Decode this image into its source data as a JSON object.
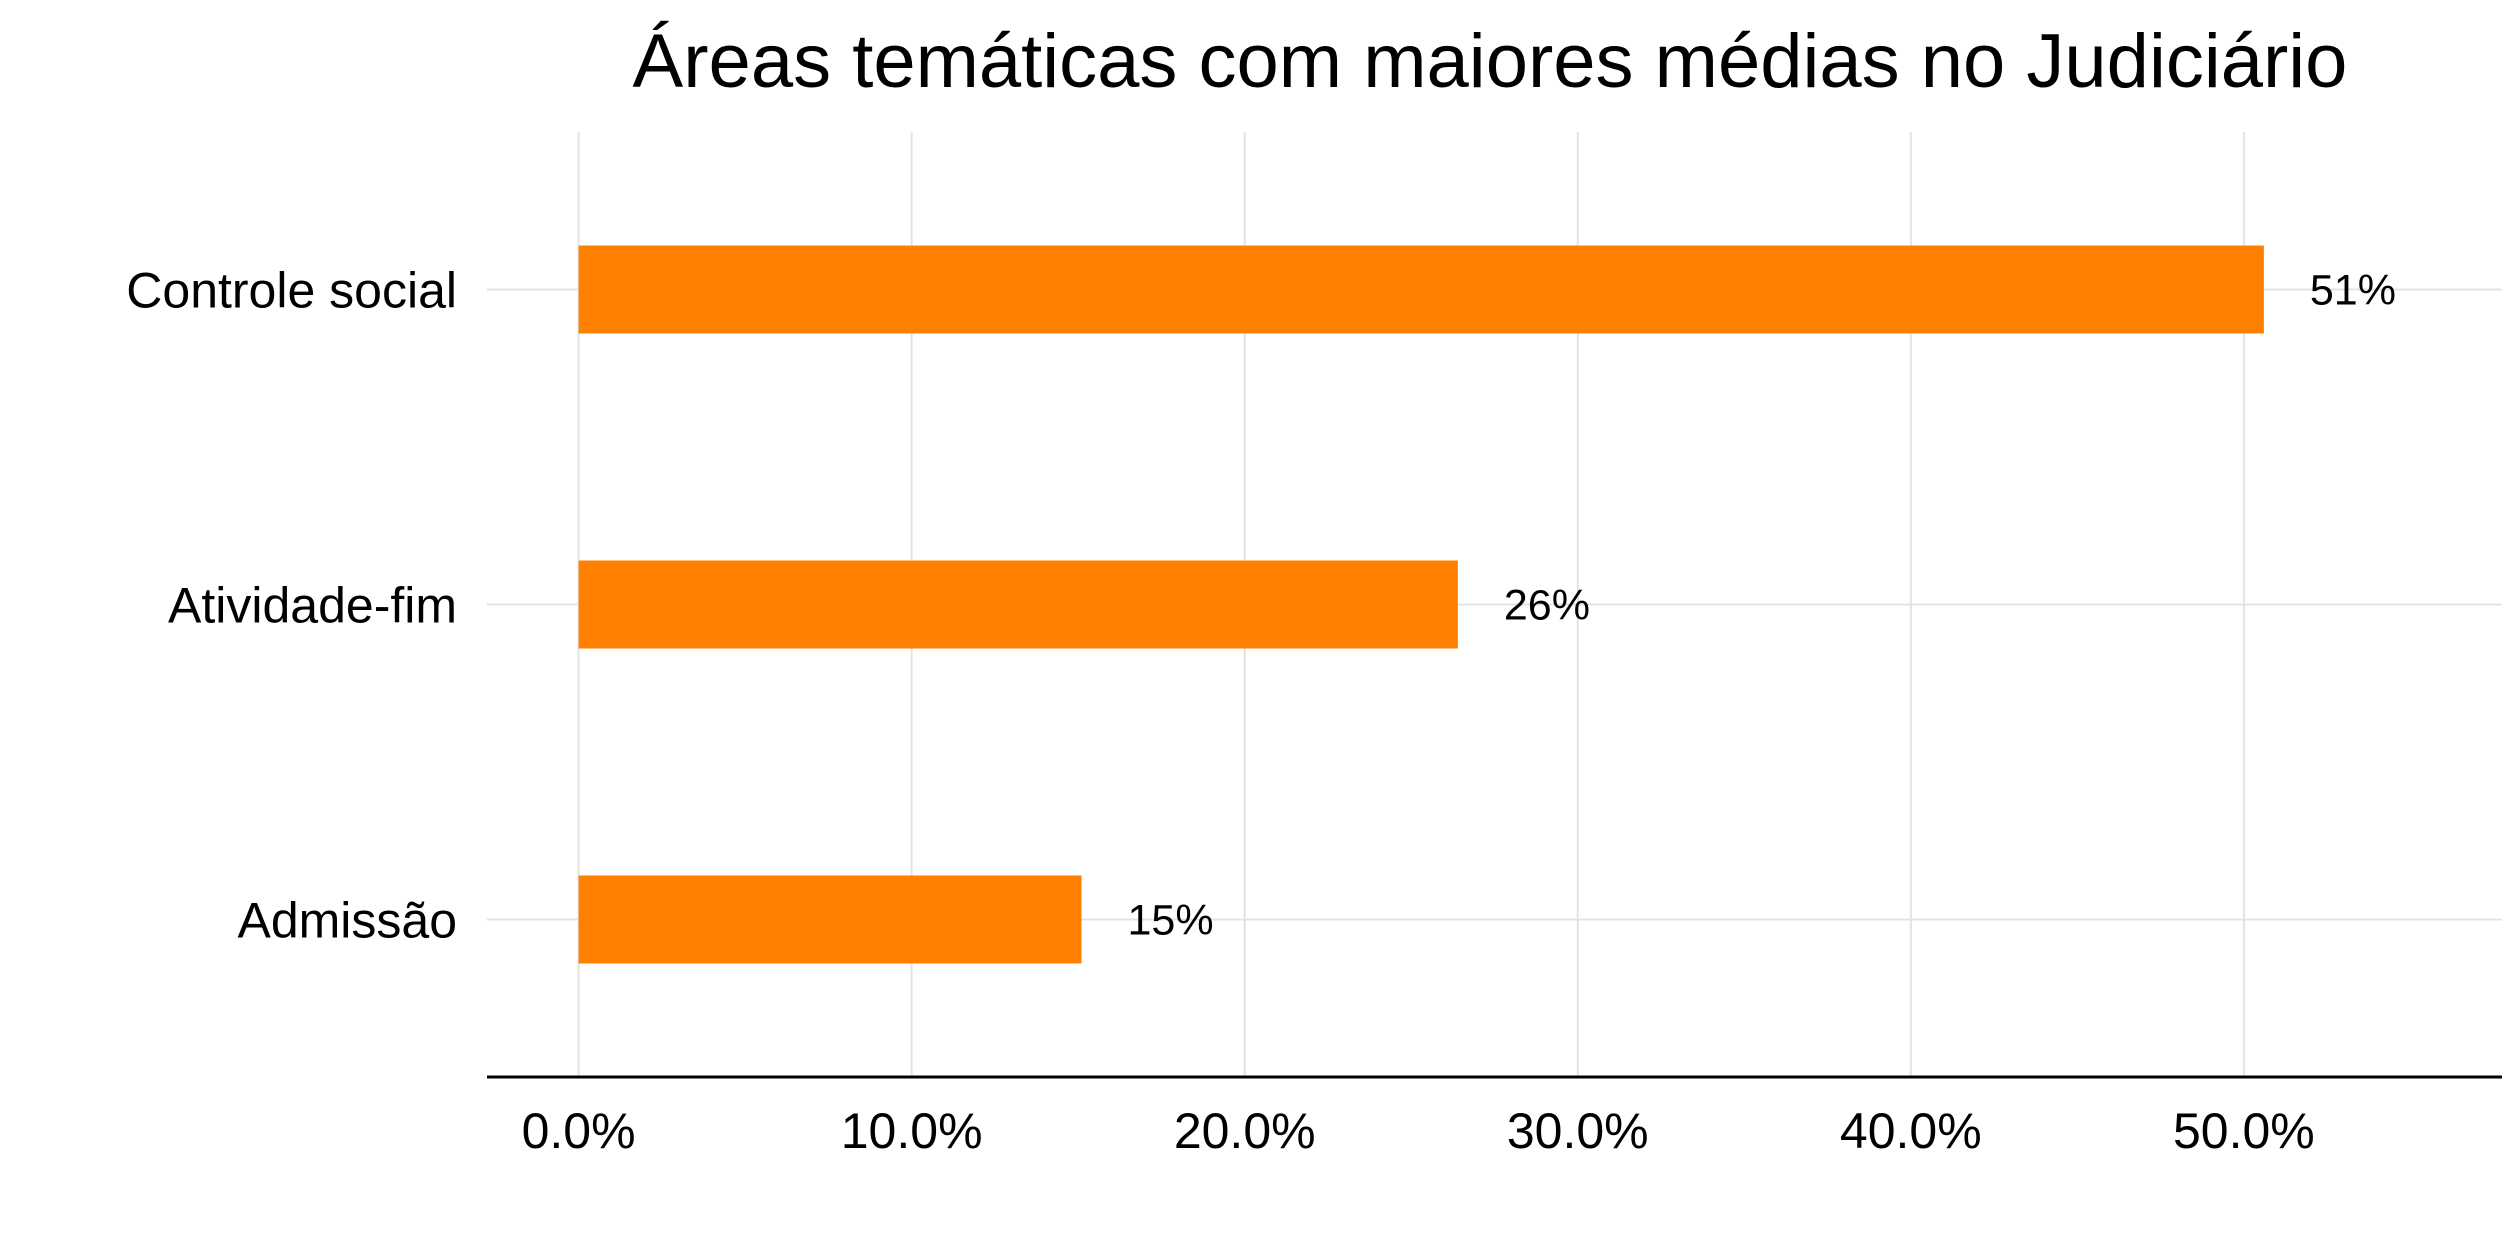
{
  "chart_data": {
    "type": "bar",
    "orientation": "horizontal",
    "title": "Áreas temáticas com maiores médias no Judiciário",
    "xlabel": "",
    "ylabel": "",
    "categories": [
      "Controle social",
      "Atividade-fim",
      "Admissão"
    ],
    "values": [
      0.506,
      0.264,
      0.151
    ],
    "data_labels": [
      "51%",
      "26%",
      "15%"
    ],
    "xlim": [
      -0.0275,
      0.5775
    ],
    "x_ticks": [
      0,
      0.1,
      0.2,
      0.3,
      0.4,
      0.5
    ],
    "x_tick_labels": [
      "0.0%",
      "10.0%",
      "20.0%",
      "30.0%",
      "40.0%",
      "50.0%"
    ],
    "grid": true,
    "legend": "none",
    "bar_color": "#ff8000"
  }
}
